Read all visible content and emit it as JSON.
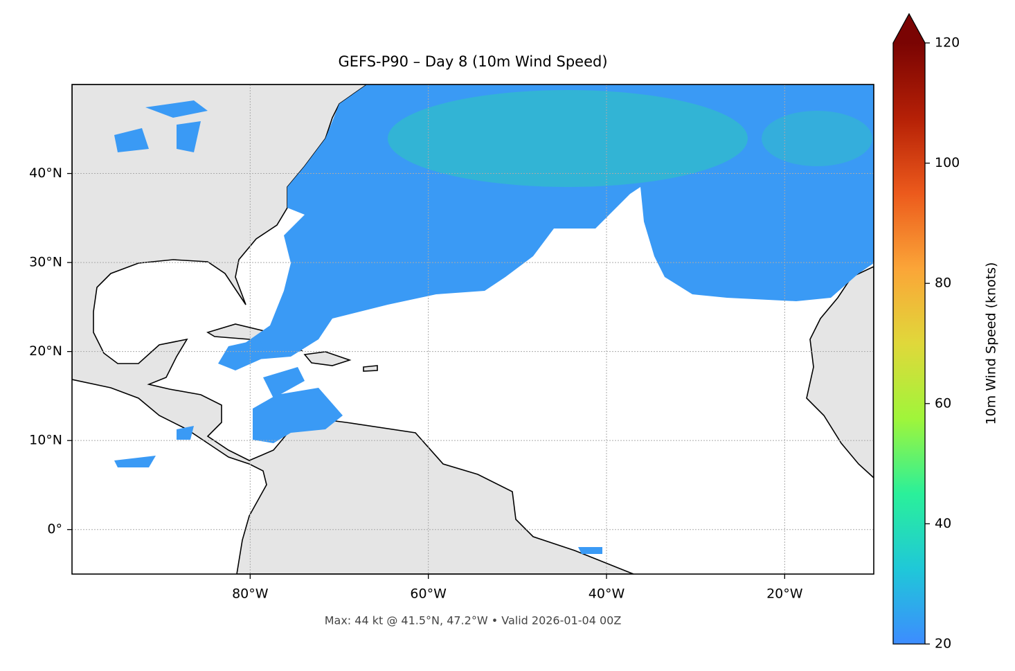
{
  "chart_data": {
    "type": "map",
    "title": "GEFS-P90 – Day 8 (10m Wind Speed)",
    "annotation": "Max: 44 kt @ 41.5°N, 47.2°W • Valid 2026-01-04 00Z",
    "xlim": [
      -100,
      -10
    ],
    "xticks": [
      {
        "value": -80,
        "label": "80°W"
      },
      {
        "value": -60,
        "label": "60°W"
      },
      {
        "value": -40,
        "label": "40°W"
      },
      {
        "value": -20,
        "label": "20°W"
      }
    ],
    "ylim": [
      -5,
      50
    ],
    "yticks": [
      {
        "value": 0,
        "label": "0°"
      },
      {
        "value": 10,
        "label": "10°N"
      },
      {
        "value": 20,
        "label": "20°N"
      },
      {
        "value": 30,
        "label": "30°N"
      },
      {
        "value": 40,
        "label": "40°N"
      }
    ],
    "grid": true,
    "colorbar": {
      "label": "10m Wind Speed (knots)",
      "lim": [
        20,
        120
      ],
      "ticks": [
        20,
        40,
        60,
        80,
        100,
        120
      ],
      "colors": [
        "#3d8cff",
        "#1fc8d8",
        "#2af09a",
        "#a0f53a",
        "#e0d83a",
        "#fba538",
        "#ec5a1c",
        "#b52006",
        "#7a0403"
      ],
      "extend": "max"
    }
  }
}
